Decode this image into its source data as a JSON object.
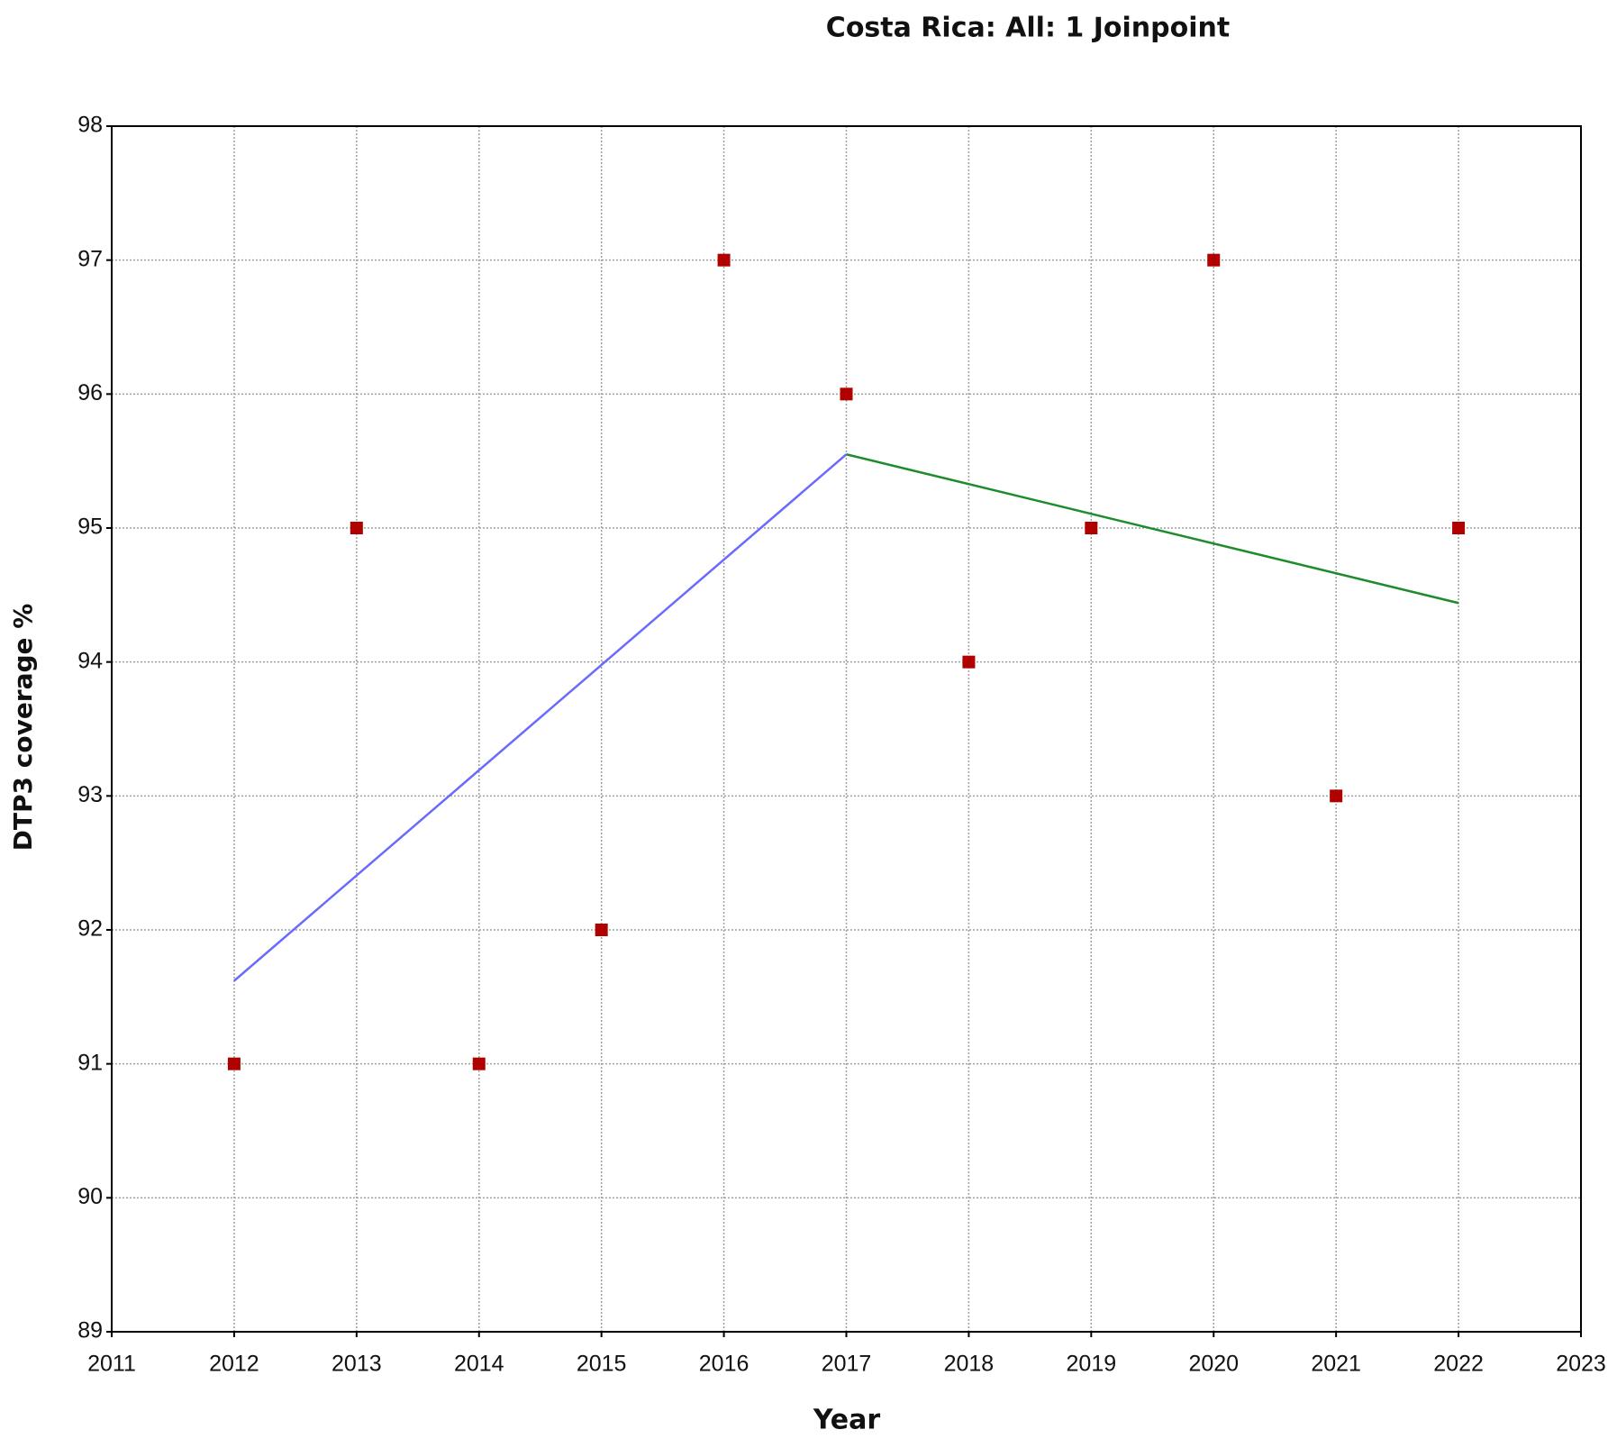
{
  "chart_data": {
    "type": "scatter",
    "title": "Costa Rica: All: 1 Joinpoint",
    "x_label": "Year",
    "y_label": "DTP3 coverage %",
    "xlim": [
      2011,
      2023
    ],
    "xticks": [
      2011,
      2012,
      2013,
      2014,
      2015,
      2016,
      2017,
      2018,
      2019,
      2020,
      2021,
      2022,
      2023
    ],
    "ylim": [
      89,
      98
    ],
    "yticks": [
      89,
      90,
      91,
      92,
      93,
      94,
      95,
      96,
      97,
      98
    ],
    "grid": true,
    "series": [
      {
        "type": "scatter",
        "color": "#b00000",
        "x": [
          2012,
          2013,
          2014,
          2015,
          2016,
          2017,
          2018,
          2019,
          2020,
          2021,
          2022
        ],
        "values": [
          91,
          95,
          91,
          92,
          97,
          96,
          94,
          95,
          97,
          93,
          95
        ]
      },
      {
        "type": "line",
        "color": "#6a6aff",
        "x": [
          2012,
          2017
        ],
        "values": [
          91.62,
          95.55
        ]
      },
      {
        "type": "line",
        "color": "#1e8c2a",
        "x": [
          2017,
          2022
        ],
        "values": [
          95.55,
          94.44
        ]
      }
    ]
  }
}
